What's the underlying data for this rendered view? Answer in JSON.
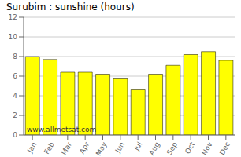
{
  "chart_data": {
    "type": "bar",
    "title": "Surubim : sunshine (hours)",
    "categories": [
      "Jan",
      "Feb",
      "Mar",
      "Apr",
      "May",
      "Jun",
      "Jul",
      "Aug",
      "Sep",
      "Oct",
      "Nov",
      "Dec"
    ],
    "values": [
      8.0,
      7.7,
      6.4,
      6.4,
      6.2,
      5.8,
      4.6,
      6.2,
      7.1,
      8.2,
      8.5,
      7.6
    ],
    "color": "#ffff00",
    "ylim": [
      0,
      12
    ],
    "yticks": [
      0,
      2,
      4,
      6,
      8,
      10,
      12
    ],
    "grid": true,
    "annotations": [
      "www.allmetsat.com"
    ]
  }
}
